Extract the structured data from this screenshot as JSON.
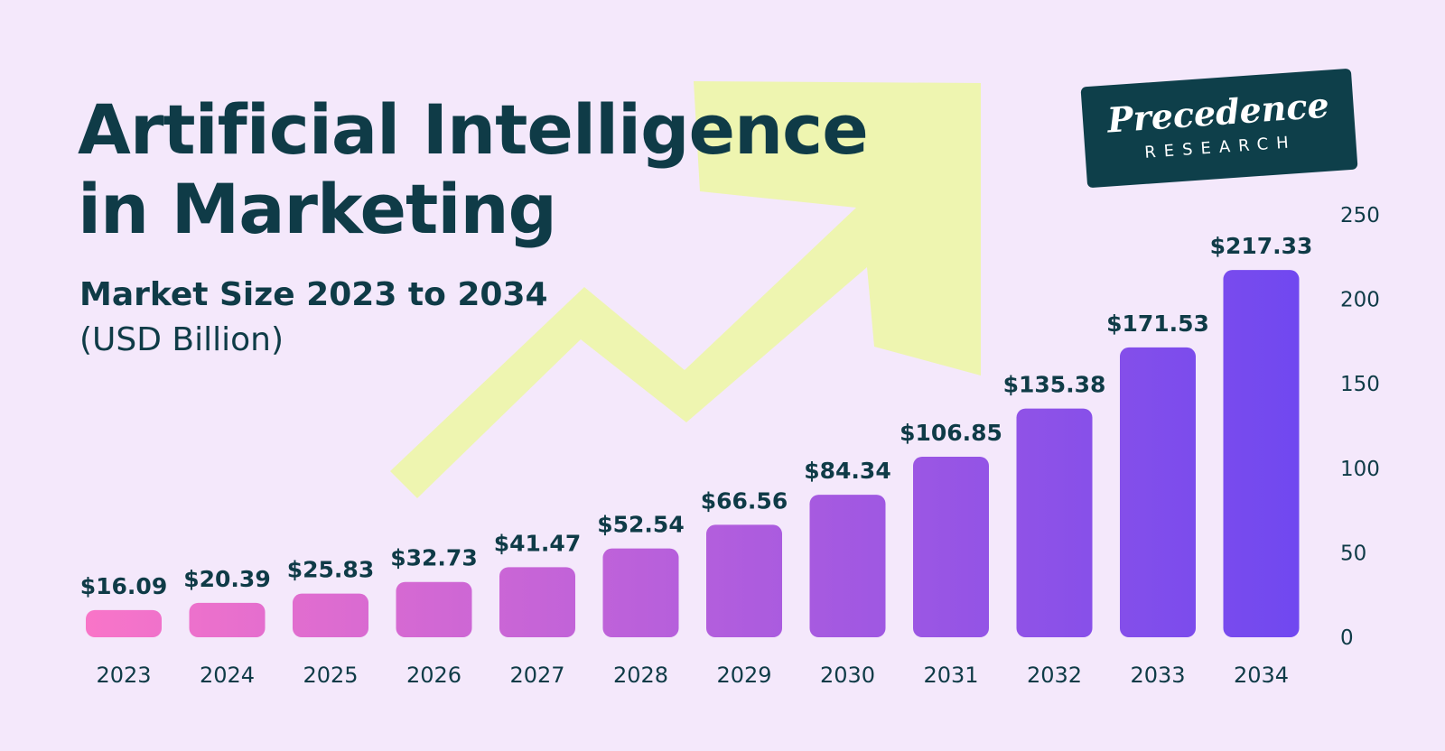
{
  "header": {
    "title_line1": "Artificial Intelligence",
    "title_line2": "in Marketing",
    "subtitle": "Market Size 2023 to 2034",
    "unit": "(USD Billion)"
  },
  "logo": {
    "brand": "Precedence",
    "sub": "RESEARCH"
  },
  "colors": {
    "background": "#f4e8fb",
    "text": "#0f3b47",
    "arrow": "#eef5b0",
    "bar_start": "#f975c8",
    "bar_end": "#7048f0"
  },
  "chart_data": {
    "type": "bar",
    "categories": [
      "2023",
      "2024",
      "2025",
      "2026",
      "2027",
      "2028",
      "2029",
      "2030",
      "2031",
      "2032",
      "2033",
      "2034"
    ],
    "values": [
      16.09,
      20.39,
      25.83,
      32.73,
      41.47,
      52.54,
      66.56,
      84.34,
      106.85,
      135.38,
      171.53,
      217.33
    ],
    "value_labels": [
      "$16.09",
      "$20.39",
      "$25.83",
      "$32.73",
      "$41.47",
      "$52.54",
      "$66.56",
      "$84.34",
      "$106.85",
      "$135.38",
      "$171.53",
      "$217.33"
    ],
    "yticks": [
      "0",
      "50",
      "100",
      "150",
      "200",
      "250"
    ],
    "ylim": [
      0,
      250
    ],
    "y_axis_position": "right",
    "grid": false,
    "legend": "none"
  }
}
